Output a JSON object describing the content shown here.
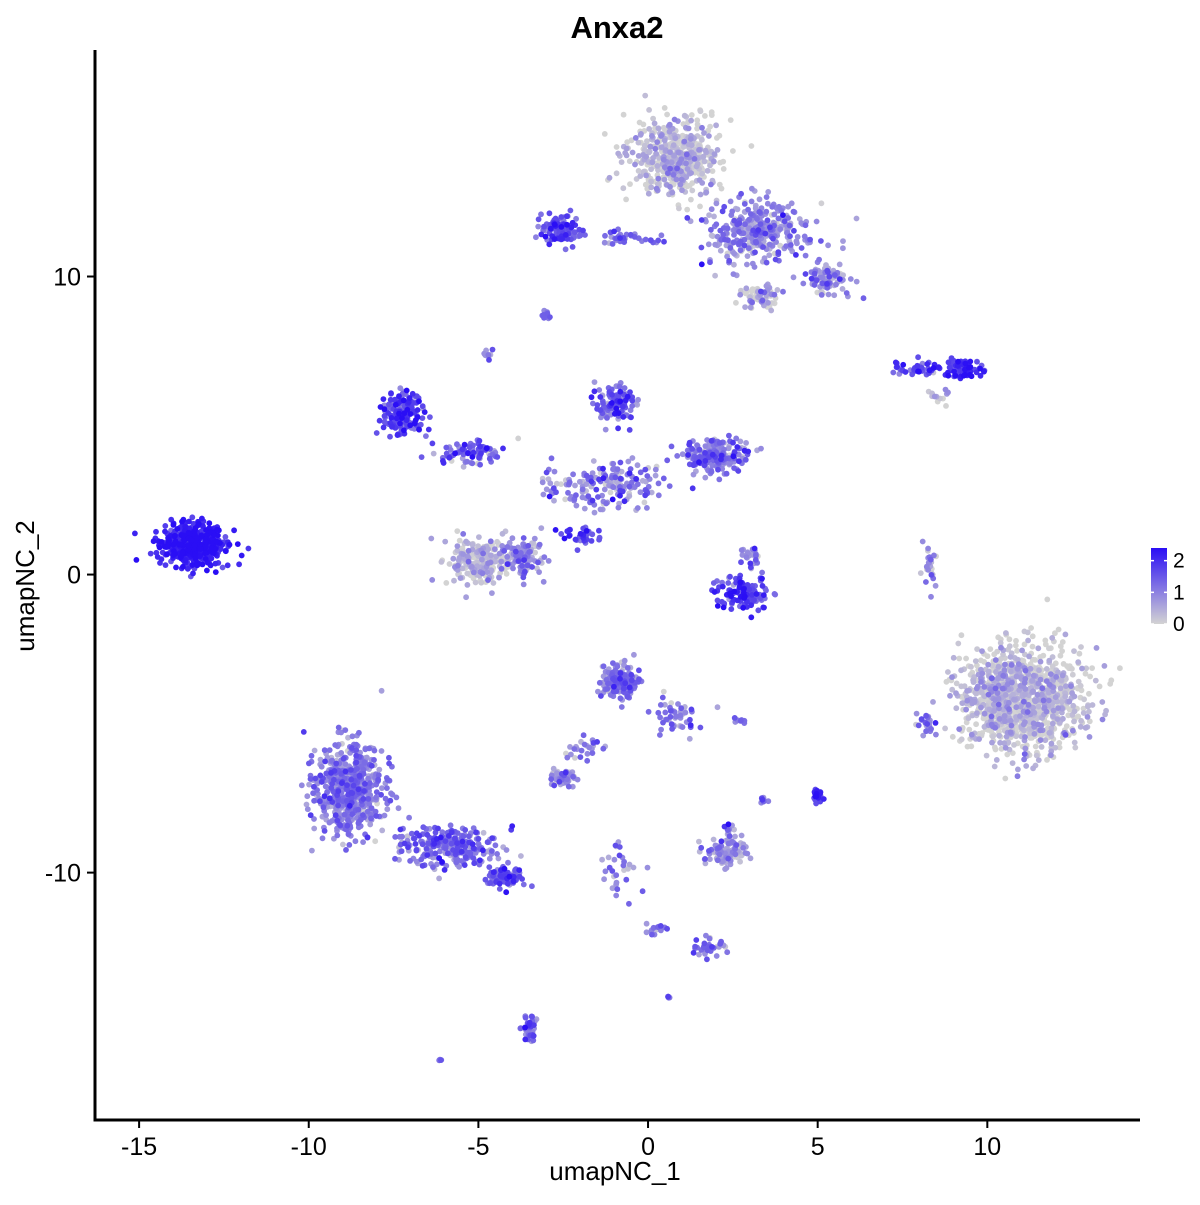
{
  "chart_data": {
    "type": "scatter",
    "title": "Anxa2",
    "xlabel": "umapNC_1",
    "ylabel": "umapNC_2",
    "xlim": [
      -16.3,
      14.5
    ],
    "ylim": [
      -18.3,
      17.6
    ],
    "x_ticks": [
      -15,
      -10,
      -5,
      0,
      5,
      10
    ],
    "x_tick_labels": [
      "-15",
      "-10",
      "-5",
      "0",
      "5",
      "10"
    ],
    "y_ticks": [
      -10,
      0,
      10
    ],
    "y_tick_labels": [
      "-10",
      "0",
      "10"
    ],
    "grid": false,
    "legend": {
      "position": "right",
      "type": "colorbar",
      "color_low": "#d3d3d3",
      "color_high": "#2a0ef5",
      "range": [
        0,
        2.4
      ],
      "ticks": [
        0,
        1,
        2
      ],
      "tick_labels": [
        "0",
        "1",
        "2"
      ]
    },
    "clusters": [
      {
        "cx": -13.4,
        "cy": 1.0,
        "sx": 0.9,
        "sy": 0.6,
        "n": 520,
        "expr": 2.1,
        "spread": 0.35
      },
      {
        "cx": 0.8,
        "cy": 14.0,
        "sx": 1.2,
        "sy": 1.2,
        "n": 520,
        "expr": 0.25,
        "spread": 0.4
      },
      {
        "cx": 3.2,
        "cy": 11.5,
        "sx": 1.4,
        "sy": 1.0,
        "n": 330,
        "expr": 0.9,
        "spread": 0.5
      },
      {
        "cx": 5.3,
        "cy": 9.9,
        "sx": 0.6,
        "sy": 0.5,
        "n": 90,
        "expr": 0.8,
        "spread": 0.5
      },
      {
        "cx": 3.3,
        "cy": 9.3,
        "sx": 0.5,
        "sy": 0.4,
        "n": 60,
        "expr": 0.5,
        "spread": 0.5
      },
      {
        "cx": -2.6,
        "cy": 11.6,
        "sx": 0.5,
        "sy": 0.4,
        "n": 110,
        "expr": 1.6,
        "spread": 0.4
      },
      {
        "cx": -0.6,
        "cy": 11.3,
        "sx": 1.3,
        "sy": 0.2,
        "n": 40,
        "expr": 1.2,
        "spread": 0.4
      },
      {
        "cx": -3.0,
        "cy": 8.7,
        "sx": 0.15,
        "sy": 0.1,
        "n": 12,
        "expr": 1.3,
        "spread": 0.3
      },
      {
        "cx": -4.7,
        "cy": 7.4,
        "sx": 0.15,
        "sy": 0.2,
        "n": 10,
        "expr": 0.8,
        "spread": 0.4
      },
      {
        "cx": -7.2,
        "cy": 5.4,
        "sx": 0.6,
        "sy": 0.6,
        "n": 170,
        "expr": 1.6,
        "spread": 0.45
      },
      {
        "cx": -5.2,
        "cy": 4.1,
        "sx": 1.0,
        "sy": 0.4,
        "n": 80,
        "expr": 1.3,
        "spread": 0.5
      },
      {
        "cx": -1.0,
        "cy": 5.7,
        "sx": 0.5,
        "sy": 0.6,
        "n": 110,
        "expr": 1.3,
        "spread": 0.5
      },
      {
        "cx": 2.0,
        "cy": 4.0,
        "sx": 0.9,
        "sy": 0.5,
        "n": 190,
        "expr": 1.1,
        "spread": 0.5
      },
      {
        "cx": -1.2,
        "cy": 3.0,
        "sx": 1.6,
        "sy": 0.7,
        "n": 180,
        "expr": 0.9,
        "spread": 0.55
      },
      {
        "cx": -4.9,
        "cy": 0.4,
        "sx": 0.8,
        "sy": 0.7,
        "n": 230,
        "expr": 0.3,
        "spread": 0.4
      },
      {
        "cx": -3.7,
        "cy": 0.6,
        "sx": 0.5,
        "sy": 0.6,
        "n": 110,
        "expr": 0.7,
        "spread": 0.5
      },
      {
        "cx": -2.1,
        "cy": 1.3,
        "sx": 0.7,
        "sy": 0.4,
        "n": 30,
        "expr": 1.8,
        "spread": 0.4
      },
      {
        "cx": 7.8,
        "cy": 6.9,
        "sx": 0.8,
        "sy": 0.2,
        "n": 50,
        "expr": 1.6,
        "spread": 0.4
      },
      {
        "cx": 9.3,
        "cy": 6.9,
        "sx": 0.5,
        "sy": 0.3,
        "n": 70,
        "expr": 1.9,
        "spread": 0.35
      },
      {
        "cx": 8.6,
        "cy": 6.0,
        "sx": 0.3,
        "sy": 0.2,
        "n": 12,
        "expr": 0.4,
        "spread": 0.5
      },
      {
        "cx": 2.8,
        "cy": -0.6,
        "sx": 0.7,
        "sy": 0.5,
        "n": 120,
        "expr": 1.7,
        "spread": 0.45
      },
      {
        "cx": 3.0,
        "cy": 0.6,
        "sx": 0.3,
        "sy": 0.4,
        "n": 25,
        "expr": 1.0,
        "spread": 0.5
      },
      {
        "cx": 8.3,
        "cy": 0.3,
        "sx": 0.2,
        "sy": 0.7,
        "n": 25,
        "expr": 0.7,
        "spread": 0.5
      },
      {
        "cx": 11.0,
        "cy": -4.2,
        "sx": 1.6,
        "sy": 1.6,
        "n": 1150,
        "expr": 0.25,
        "spread": 0.4
      },
      {
        "cx": 8.2,
        "cy": -5.0,
        "sx": 0.3,
        "sy": 0.4,
        "n": 25,
        "expr": 1.1,
        "spread": 0.5
      },
      {
        "cx": -0.8,
        "cy": -3.6,
        "sx": 0.5,
        "sy": 0.5,
        "n": 160,
        "expr": 1.0,
        "spread": 0.5
      },
      {
        "cx": 0.8,
        "cy": -4.8,
        "sx": 0.6,
        "sy": 0.5,
        "n": 50,
        "expr": 1.0,
        "spread": 0.5
      },
      {
        "cx": -1.8,
        "cy": -5.8,
        "sx": 0.6,
        "sy": 0.4,
        "n": 25,
        "expr": 0.8,
        "spread": 0.5
      },
      {
        "cx": -2.5,
        "cy": -6.8,
        "sx": 0.35,
        "sy": 0.25,
        "n": 60,
        "expr": 0.6,
        "spread": 0.5
      },
      {
        "cx": 2.7,
        "cy": -4.9,
        "sx": 0.25,
        "sy": 0.1,
        "n": 10,
        "expr": 1.3,
        "spread": 0.4
      },
      {
        "cx": 5.0,
        "cy": -7.4,
        "sx": 0.12,
        "sy": 0.2,
        "n": 25,
        "expr": 2.0,
        "spread": 0.3
      },
      {
        "cx": 3.4,
        "cy": -7.6,
        "sx": 0.1,
        "sy": 0.1,
        "n": 8,
        "expr": 0.9,
        "spread": 0.5
      },
      {
        "cx": -8.8,
        "cy": -7.2,
        "sx": 0.9,
        "sy": 1.4,
        "n": 620,
        "expr": 1.0,
        "spread": 0.4
      },
      {
        "cx": -5.9,
        "cy": -9.1,
        "sx": 1.4,
        "sy": 0.6,
        "n": 260,
        "expr": 1.2,
        "spread": 0.45
      },
      {
        "cx": -4.2,
        "cy": -10.1,
        "sx": 0.5,
        "sy": 0.3,
        "n": 80,
        "expr": 1.4,
        "spread": 0.45
      },
      {
        "cx": 2.3,
        "cy": -9.3,
        "sx": 0.6,
        "sy": 0.4,
        "n": 100,
        "expr": 0.6,
        "spread": 0.5
      },
      {
        "cx": 2.4,
        "cy": -8.6,
        "sx": 0.15,
        "sy": 0.2,
        "n": 12,
        "expr": 1.0,
        "spread": 0.5
      },
      {
        "cx": -0.8,
        "cy": -10.0,
        "sx": 0.4,
        "sy": 0.9,
        "n": 30,
        "expr": 1.0,
        "spread": 0.5
      },
      {
        "cx": 1.8,
        "cy": -12.5,
        "sx": 0.6,
        "sy": 0.25,
        "n": 35,
        "expr": 1.2,
        "spread": 0.5
      },
      {
        "cx": 0.2,
        "cy": -11.9,
        "sx": 0.5,
        "sy": 0.2,
        "n": 15,
        "expr": 1.0,
        "spread": 0.5
      },
      {
        "cx": -3.5,
        "cy": -15.3,
        "sx": 0.2,
        "sy": 0.5,
        "n": 45,
        "expr": 1.2,
        "spread": 0.5
      },
      {
        "cx": 0.6,
        "cy": -14.2,
        "sx": 0.06,
        "sy": 0.06,
        "n": 5,
        "expr": 1.2,
        "spread": 0.3
      },
      {
        "cx": -6.1,
        "cy": -16.3,
        "sx": 0.06,
        "sy": 0.06,
        "n": 5,
        "expr": 1.3,
        "spread": 0.3
      }
    ]
  }
}
